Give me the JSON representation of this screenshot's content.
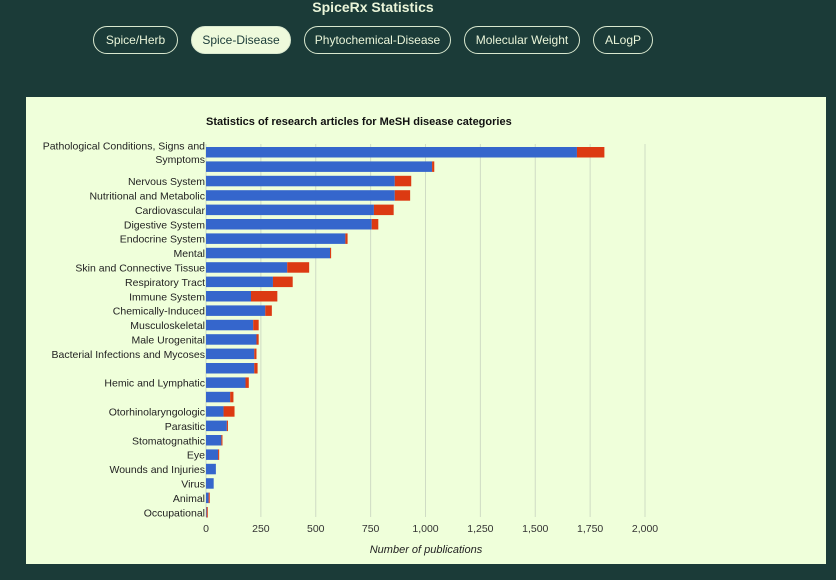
{
  "app": {
    "title": "SpiceRx Statistics"
  },
  "tabs": [
    {
      "label": "Spice/Herb",
      "active": false
    },
    {
      "label": "Spice-Disease",
      "active": true
    },
    {
      "label": "Phytochemical-Disease",
      "active": false
    },
    {
      "label": "Molecular Weight",
      "active": false
    },
    {
      "label": "ALogP",
      "active": false
    }
  ],
  "colors": {
    "series_a": "#3566cc",
    "series_b": "#dc3a12",
    "panel": "#efffda",
    "background": "#1b3b38"
  },
  "chart_data": {
    "type": "bar",
    "orientation": "horizontal",
    "stacked": true,
    "title": "Statistics of research articles for MeSH disease categories",
    "xlabel": "Number of publications",
    "ylabel": "",
    "xlim": [
      0,
      2000
    ],
    "xticks": [
      0,
      250,
      500,
      750,
      1000,
      1250,
      1500,
      1750,
      2000
    ],
    "xtick_labels": [
      "0",
      "250",
      "500",
      "750",
      "1,000",
      "1,250",
      "1,500",
      "1,750",
      "2,000"
    ],
    "grid": true,
    "legend": "none",
    "categories": [
      "Pathological Conditions, Signs and Symptoms",
      "",
      "Nervous System",
      "Nutritional and Metabolic",
      "Cardiovascular",
      "Digestive System",
      "Endocrine System",
      "Mental",
      "Skin and Connective Tissue",
      "Respiratory Tract",
      "Immune System",
      "Chemically-Induced",
      "Musculoskeletal",
      "Male Urogenital",
      "Bacterial Infections and Mycoses",
      "",
      "Hemic and Lymphatic",
      "",
      "Otorhinolaryngologic",
      "Parasitic",
      "Stomatognathic",
      "Eye",
      "Wounds and Injuries",
      "Virus",
      "Animal",
      "Occupational"
    ],
    "series": [
      {
        "values": [
          1690,
          1030,
          860,
          860,
          765,
          755,
          635,
          565,
          370,
          305,
          205,
          270,
          215,
          230,
          220,
          220,
          180,
          110,
          80,
          95,
          70,
          55,
          45,
          35,
          12,
          3
        ]
      },
      {
        "values": [
          125,
          10,
          75,
          70,
          90,
          30,
          10,
          5,
          100,
          90,
          120,
          30,
          25,
          10,
          10,
          15,
          15,
          15,
          50,
          5,
          5,
          5,
          0,
          0,
          5,
          5
        ]
      }
    ]
  }
}
